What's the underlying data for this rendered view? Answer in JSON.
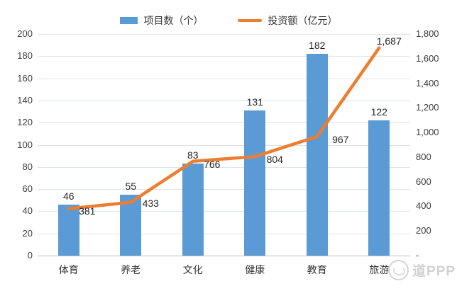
{
  "legend": {
    "items": [
      {
        "label": "项目数（个）",
        "swatch": "bar-swatch",
        "color": "#5B9BD5"
      },
      {
        "label": "投资额（亿元）",
        "swatch": "line-swatch",
        "color": "#ED7D31"
      }
    ]
  },
  "chart_data": {
    "type": "combo-bar-line",
    "categories": [
      "体育",
      "养老",
      "文化",
      "健康",
      "教育",
      "旅游"
    ],
    "series": [
      {
        "name": "项目数（个）",
        "type": "bar",
        "axis": "left",
        "color": "#5B9BD5",
        "values": [
          46,
          55,
          83,
          131,
          182,
          122
        ],
        "labels": [
          "46",
          "55",
          "83",
          "131",
          "182",
          "122"
        ]
      },
      {
        "name": "投资额（亿元）",
        "type": "line",
        "axis": "right",
        "color": "#ED7D31",
        "values": [
          381,
          433,
          766,
          804,
          967,
          1687
        ],
        "labels": [
          "381",
          "433",
          "766",
          "804",
          "967",
          "1,687"
        ]
      }
    ],
    "left_axis": {
      "min": 0,
      "max": 200,
      "step": 20,
      "ticks": [
        "0",
        "20",
        "40",
        "60",
        "80",
        "100",
        "120",
        "140",
        "160",
        "180",
        "200"
      ]
    },
    "right_axis": {
      "min": 0,
      "max": 1800,
      "step": 200,
      "ticks": [
        "-",
        "200",
        "400",
        "600",
        "800",
        "1,000",
        "1,200",
        "1,400",
        "1,600",
        "1,800"
      ]
    },
    "grid": true,
    "legend_position": "top",
    "colors": {
      "gridline": "#dde3ea",
      "axis_line": "#bfbfbf",
      "label_text": "#262626"
    }
  },
  "watermark": {
    "text": "道PPP",
    "icon": "logo-circle-icon"
  }
}
